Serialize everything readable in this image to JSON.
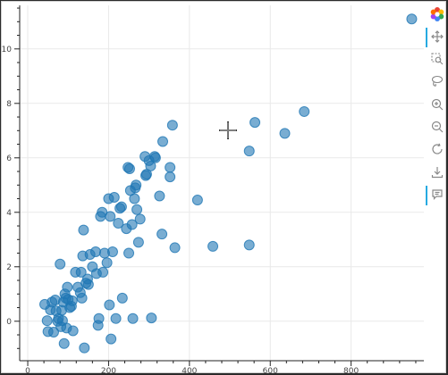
{
  "chart_data": {
    "type": "scatter",
    "title": "",
    "xlabel": "",
    "ylabel": "",
    "xlim": [
      -20,
      980
    ],
    "ylim": [
      -1.45,
      11.6
    ],
    "x_ticks": [
      0,
      200,
      400,
      600,
      800
    ],
    "y_ticks": [
      0,
      2,
      4,
      6,
      8,
      10
    ],
    "x_tick_labels": [
      "0",
      "200",
      "400",
      "600",
      "800"
    ],
    "y_tick_labels": [
      "0",
      "2",
      "4",
      "6",
      "8",
      "10"
    ],
    "grid": true,
    "marker_color": "#1f77b4",
    "points": [
      [
        42,
        0.62
      ],
      [
        48,
        0.02
      ],
      [
        50,
        -0.38
      ],
      [
        56,
        0.42
      ],
      [
        60,
        0.7
      ],
      [
        64,
        -0.4
      ],
      [
        68,
        0.78
      ],
      [
        70,
        0.38
      ],
      [
        74,
        0.0
      ],
      [
        76,
        0.1
      ],
      [
        80,
        2.1
      ],
      [
        82,
        -0.2
      ],
      [
        84,
        0.4
      ],
      [
        86,
        0.02
      ],
      [
        88,
        0.7
      ],
      [
        90,
        -0.82
      ],
      [
        92,
        1.0
      ],
      [
        94,
        0.85
      ],
      [
        96,
        -0.25
      ],
      [
        98,
        1.25
      ],
      [
        100,
        0.8
      ],
      [
        104,
        0.5
      ],
      [
        108,
        0.55
      ],
      [
        110,
        0.75
      ],
      [
        112,
        -0.35
      ],
      [
        118,
        1.8
      ],
      [
        124,
        1.25
      ],
      [
        130,
        1.05
      ],
      [
        132,
        1.8
      ],
      [
        134,
        0.85
      ],
      [
        136,
        2.4
      ],
      [
        138,
        3.35
      ],
      [
        140,
        -0.98
      ],
      [
        144,
        1.4
      ],
      [
        148,
        1.55
      ],
      [
        150,
        1.35
      ],
      [
        154,
        2.45
      ],
      [
        160,
        2.0
      ],
      [
        168,
        2.55
      ],
      [
        170,
        1.75
      ],
      [
        174,
        -0.15
      ],
      [
        176,
        0.1
      ],
      [
        180,
        3.85
      ],
      [
        184,
        4.0
      ],
      [
        186,
        1.8
      ],
      [
        190,
        2.5
      ],
      [
        196,
        2.15
      ],
      [
        200,
        4.5
      ],
      [
        202,
        0.6
      ],
      [
        204,
        3.85
      ],
      [
        206,
        -0.65
      ],
      [
        210,
        2.55
      ],
      [
        214,
        4.55
      ],
      [
        218,
        0.1
      ],
      [
        224,
        3.6
      ],
      [
        228,
        4.15
      ],
      [
        232,
        4.2
      ],
      [
        234,
        0.85
      ],
      [
        244,
        3.4
      ],
      [
        248,
        5.65
      ],
      [
        250,
        2.5
      ],
      [
        252,
        5.6
      ],
      [
        254,
        4.8
      ],
      [
        258,
        3.55
      ],
      [
        260,
        0.1
      ],
      [
        264,
        4.5
      ],
      [
        266,
        4.9
      ],
      [
        268,
        5.0
      ],
      [
        270,
        4.1
      ],
      [
        274,
        2.9
      ],
      [
        278,
        3.75
      ],
      [
        290,
        6.05
      ],
      [
        292,
        5.35
      ],
      [
        294,
        5.4
      ],
      [
        300,
        5.9
      ],
      [
        304,
        5.7
      ],
      [
        306,
        0.12
      ],
      [
        314,
        6.05
      ],
      [
        316,
        6.0
      ],
      [
        326,
        4.6
      ],
      [
        332,
        3.2
      ],
      [
        334,
        6.6
      ],
      [
        352,
        5.65
      ],
      [
        352,
        5.3
      ],
      [
        358,
        7.2
      ],
      [
        364,
        2.7
      ],
      [
        420,
        4.45
      ],
      [
        458,
        2.75
      ],
      [
        548,
        6.25
      ],
      [
        548,
        2.8
      ],
      [
        562,
        7.3
      ],
      [
        636,
        6.9
      ],
      [
        684,
        7.7
      ],
      [
        950,
        11.1
      ]
    ]
  },
  "toolbar": {
    "logo_color": "#ea4335",
    "tools": [
      {
        "name": "pan-icon",
        "active": true
      },
      {
        "name": "box-zoom-icon",
        "active": false
      },
      {
        "name": "lasso-select-icon",
        "active": false
      },
      {
        "name": "zoom-in-icon",
        "active": false
      },
      {
        "name": "zoom-out-icon",
        "active": false
      },
      {
        "name": "reset-icon",
        "active": false
      },
      {
        "name": "save-icon",
        "active": false
      },
      {
        "name": "hover-icon",
        "active": true
      }
    ]
  }
}
